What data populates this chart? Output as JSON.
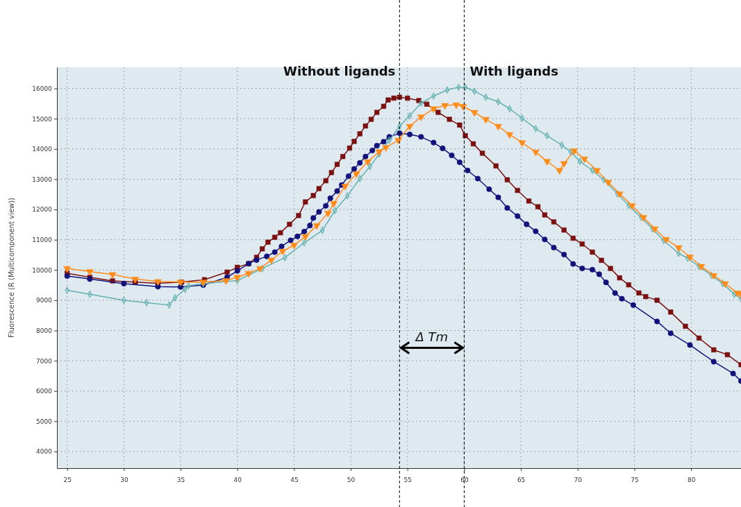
{
  "chart_data": {
    "type": "line",
    "ylabel": "Fluorescence (R (Multicomponent view))",
    "xlim": [
      24.1,
      84.4
    ],
    "ylim": [
      3450,
      16700
    ],
    "xticks": [
      25,
      30,
      35,
      40,
      45,
      50,
      55,
      60,
      65,
      70,
      75,
      80
    ],
    "yticks": [
      4000,
      5000,
      6000,
      7000,
      8000,
      9000,
      10000,
      11000,
      12000,
      13000,
      14000,
      15000,
      16000
    ],
    "grid": true,
    "line_style": "solid",
    "series": [
      {
        "color": "#7a1010",
        "marker": "square",
        "x": [
          25,
          27,
          29,
          31,
          33,
          35.1,
          37.1,
          39.1,
          40,
          41,
          41.7,
          42.2,
          42.7,
          43.3,
          43.8,
          44.6,
          45.4,
          46,
          46.7,
          47.2,
          47.8,
          48.3,
          48.8,
          49.3,
          49.9,
          50.3,
          50.8,
          51.3,
          51.8,
          52.3,
          52.9,
          53.3,
          53.8,
          54.3,
          55,
          56,
          56.7,
          57.7,
          58.7,
          59.6,
          60.1,
          60.8,
          61.6,
          62.8,
          63.8,
          64.7,
          65.7,
          66.5,
          67.1,
          67.9,
          68.8,
          69.6,
          70.4,
          71.3,
          72.1,
          72.9,
          73.7,
          74.5,
          75.4,
          76,
          77,
          78.2,
          79.5,
          80.7,
          82,
          83.2,
          84.4
        ],
        "values": [
          9890,
          9760,
          9640,
          9600,
          9560,
          9600,
          9680,
          9930,
          10090,
          10210,
          10420,
          10700,
          10920,
          11080,
          11230,
          11510,
          11800,
          12250,
          12460,
          12690,
          12950,
          13220,
          13490,
          13750,
          14030,
          14250,
          14500,
          14760,
          14980,
          15210,
          15410,
          15620,
          15680,
          15710,
          15680,
          15600,
          15480,
          15210,
          14980,
          14790,
          14440,
          14170,
          13860,
          13440,
          12980,
          12630,
          12280,
          12090,
          11820,
          11590,
          11320,
          11050,
          10860,
          10590,
          10320,
          10050,
          9740,
          9510,
          9240,
          9120,
          9000,
          8610,
          8140,
          7750,
          7360,
          7200,
          6870
        ]
      },
      {
        "color": "#12127a",
        "marker": "circle",
        "x": [
          25,
          27,
          30,
          33,
          35,
          37,
          39.1,
          40,
          41,
          41.7,
          42.6,
          43.3,
          43.9,
          44.7,
          45.3,
          45.9,
          46.4,
          46.7,
          47.2,
          47.8,
          48.2,
          48.8,
          49.2,
          49.8,
          50.3,
          50.8,
          51.3,
          51.9,
          52.3,
          52.9,
          53.4,
          54.3,
          55.2,
          56.2,
          57.3,
          58.1,
          58.9,
          59.6,
          60.3,
          61.2,
          62.2,
          63,
          63.8,
          64.7,
          65.5,
          66.3,
          67.1,
          67.9,
          68.8,
          69.6,
          70.4,
          71.3,
          71.9,
          72.5,
          73.3,
          73.9,
          74.9,
          77,
          78.2,
          79.9,
          82,
          83.7,
          84.4
        ],
        "values": [
          9800,
          9700,
          9550,
          9450,
          9440,
          9500,
          9760,
          9970,
          10210,
          10330,
          10450,
          10590,
          10780,
          10980,
          11110,
          11270,
          11470,
          11720,
          11920,
          12120,
          12370,
          12610,
          12810,
          13100,
          13340,
          13540,
          13750,
          13950,
          14110,
          14240,
          14400,
          14520,
          14480,
          14400,
          14210,
          14020,
          13790,
          13560,
          13290,
          13020,
          12670,
          12400,
          12050,
          11780,
          11510,
          11280,
          11010,
          10740,
          10510,
          10200,
          10050,
          10010,
          9860,
          9590,
          9240,
          9050,
          8840,
          8300,
          7910,
          7520,
          6970,
          6580,
          6330
        ]
      },
      {
        "color": "#62b0b0",
        "marker": "diamond",
        "x": [
          25,
          27,
          30,
          32,
          34,
          34.5,
          35.4,
          35.7,
          37,
          40,
          42.2,
          44.2,
          45.9,
          47.5,
          48.6,
          49.7,
          50.8,
          51.7,
          52.5,
          53.4,
          54.3,
          55.2,
          56.2,
          57.3,
          58.5,
          59.5,
          60.1,
          60.9,
          61.9,
          63,
          64,
          65.1,
          66.3,
          67.3,
          68.6,
          69.4,
          70.2,
          71.3,
          72.3,
          73.5,
          74.5,
          75.6,
          76.6,
          77.6,
          78.9,
          79.7,
          80.7,
          81.8,
          82.8,
          83.8,
          84.4
        ],
        "values": [
          9330,
          9200,
          9000,
          8920,
          8840,
          9080,
          9360,
          9480,
          9550,
          9650,
          10050,
          10410,
          10900,
          11310,
          11960,
          12450,
          13020,
          13420,
          13830,
          14290,
          14750,
          15100,
          15520,
          15750,
          15950,
          16040,
          16040,
          15910,
          15710,
          15560,
          15330,
          15020,
          14670,
          14440,
          14130,
          13900,
          13590,
          13290,
          12980,
          12520,
          12130,
          11740,
          11360,
          10970,
          10550,
          10390,
          10120,
          9820,
          9550,
          9200,
          9050
        ]
      },
      {
        "color": "#ff8c1a",
        "marker": "triangle",
        "x": [
          25,
          27,
          29,
          31,
          33,
          35,
          37,
          39,
          40,
          41,
          42,
          43,
          44,
          45,
          46,
          47,
          48,
          48.5,
          49.5,
          50.5,
          51.5,
          52.5,
          53.1,
          54.2,
          55.2,
          56.2,
          57.3,
          58.3,
          59.3,
          59.9,
          60.9,
          61.9,
          63,
          64,
          65.1,
          66.3,
          67.3,
          68.4,
          68.8,
          69.7,
          70.6,
          71.7,
          72.7,
          73.7,
          74.8,
          75.8,
          76.8,
          77.8,
          78.9,
          79.9,
          80.9,
          82,
          83,
          84.1,
          84.4
        ],
        "values": [
          10050,
          9950,
          9850,
          9700,
          9620,
          9600,
          9600,
          9650,
          9760,
          9890,
          10050,
          10330,
          10620,
          10820,
          11110,
          11470,
          11880,
          12200,
          12770,
          13180,
          13580,
          13910,
          14050,
          14290,
          14750,
          15060,
          15330,
          15440,
          15460,
          15410,
          15210,
          14980,
          14750,
          14480,
          14210,
          13900,
          13590,
          13290,
          13520,
          13940,
          13670,
          13290,
          12900,
          12520,
          12130,
          11740,
          11360,
          11010,
          10740,
          10430,
          10120,
          9820,
          9550,
          9240,
          9200
        ]
      }
    ],
    "ref_lines": [
      {
        "axis": "x",
        "value": 54.3,
        "label": "Without ligands",
        "line_style": "dashed",
        "color": "#000000"
      },
      {
        "axis": "x",
        "value": 60,
        "label": "With ligands",
        "line_style": "dashed",
        "color": "#000000"
      }
    ],
    "annotations": [
      "Δ Tm"
    ]
  }
}
